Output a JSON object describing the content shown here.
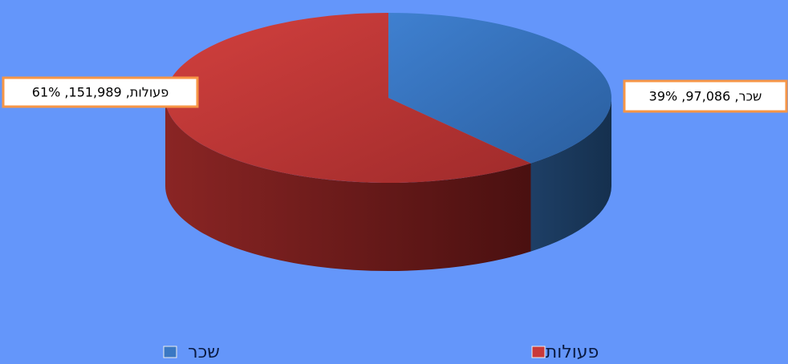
{
  "chart_data": {
    "type": "pie",
    "categories": [
      "שכר",
      "פעולות"
    ],
    "values": [
      97086,
      151989
    ],
    "value_labels": [
      "שכר, 97,086, 39%",
      "פעולות, 151,989, 61%"
    ],
    "colors": [
      "#3a78c3",
      "#c9393a"
    ],
    "legend": "bottom"
  }
}
